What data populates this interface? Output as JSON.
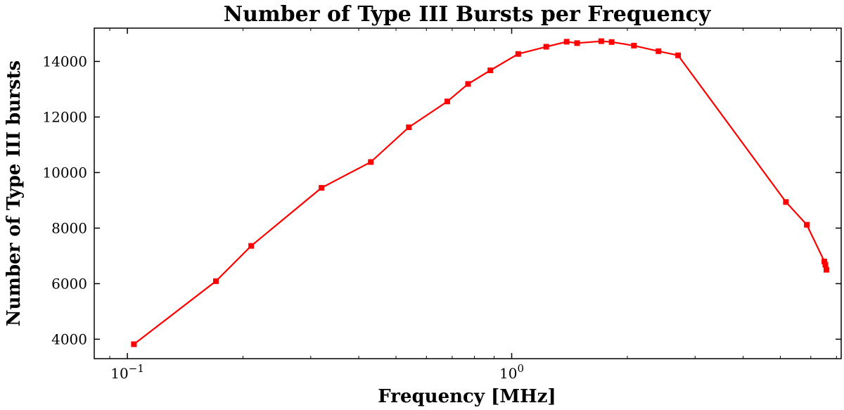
{
  "chart_data": {
    "type": "line",
    "title": "Number of Type III Bursts per Frequency",
    "xlabel": "Frequency [MHz]",
    "ylabel": "Number of Type III bursts",
    "xscale": "log",
    "xlim": [
      0.082,
      7.2
    ],
    "ylim": [
      3300,
      15200
    ],
    "xticks": [
      {
        "value": 0.1,
        "base": "10",
        "exp": "−1"
      },
      {
        "value": 1,
        "base": "10",
        "exp": "0"
      }
    ],
    "yticks": [
      4000,
      6000,
      8000,
      10000,
      12000,
      14000
    ],
    "grid": false,
    "color": "#ff0000",
    "series": [
      {
        "x": [
          0.104,
          0.17,
          0.21,
          0.32,
          0.43,
          0.54,
          0.68,
          0.77,
          0.88,
          1.04,
          1.23,
          1.39,
          1.48,
          1.71,
          1.82,
          2.08,
          2.41,
          2.71,
          5.17,
          5.86,
          6.51,
          6.55,
          6.59
        ],
        "y": [
          3820,
          6090,
          7360,
          9450,
          10380,
          11630,
          12560,
          13190,
          13680,
          14270,
          14530,
          14710,
          14660,
          14730,
          14700,
          14570,
          14370,
          14220,
          8940,
          8120,
          6800,
          6680,
          6500
        ]
      }
    ]
  }
}
